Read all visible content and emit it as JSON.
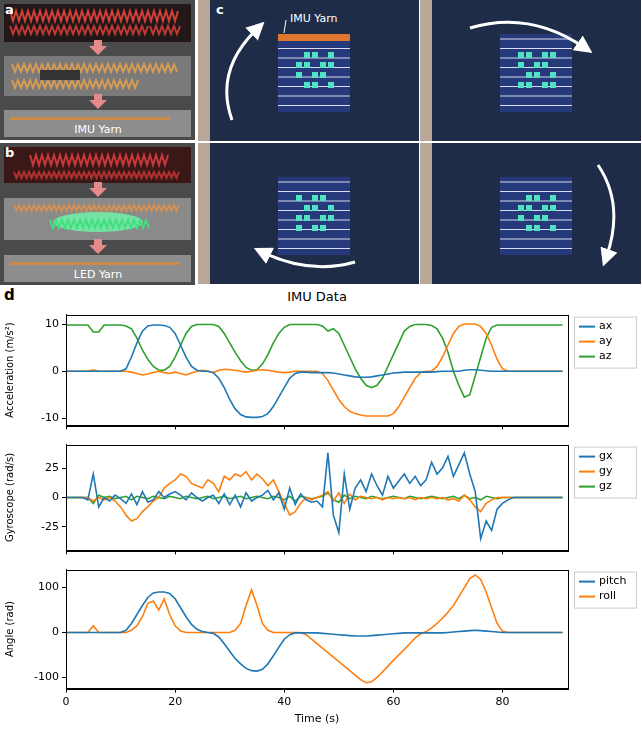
{
  "panels": [
    {
      "label": "a",
      "text": "IMU Yarn"
    },
    {
      "label": "b",
      "text": "LED Yarn"
    },
    {
      "label": "c",
      "text": "IMU Yarn"
    },
    {
      "label": "d"
    }
  ],
  "chart_data": [
    {
      "type": "line",
      "title": "IMU Data",
      "y_label": "Acceleration (m/s²)",
      "x": [
        0,
        1,
        2,
        3,
        4,
        5,
        6,
        7,
        8,
        9,
        10,
        11,
        12,
        13,
        14,
        15,
        16,
        17,
        18,
        19,
        20,
        21,
        22,
        23,
        24,
        25,
        26,
        27,
        28,
        29,
        30,
        31,
        32,
        33,
        34,
        35,
        36,
        37,
        38,
        39,
        40,
        41,
        42,
        43,
        44,
        45,
        46,
        47,
        48,
        49,
        50,
        51,
        52,
        53,
        54,
        55,
        56,
        57,
        58,
        59,
        60,
        61,
        62,
        63,
        64,
        65,
        66,
        67,
        68,
        69,
        70,
        71,
        72,
        73,
        74,
        75,
        76,
        77,
        78,
        79,
        80,
        81,
        82,
        83,
        84,
        85,
        86,
        87,
        88,
        89,
        90,
        91
      ],
      "xlim": [
        0,
        92
      ],
      "xticks": [
        0,
        20,
        40,
        60,
        80
      ],
      "ylim": [
        -11.5,
        12
      ],
      "yticks": [
        -10,
        0,
        10
      ],
      "grid": false,
      "legend": "right",
      "tick_labels": "y",
      "series": [
        {
          "name": "ax",
          "color": "#1f77b4",
          "values": [
            0,
            0,
            0,
            0,
            0,
            0,
            0,
            0,
            0,
            0,
            0,
            0.5,
            3,
            6,
            8.5,
            9.6,
            9.8,
            9.8,
            9.7,
            9.3,
            8,
            5.5,
            3,
            1,
            0.2,
            0,
            0,
            -0.3,
            -1.5,
            -3.5,
            -6,
            -8,
            -9.2,
            -9.7,
            -9.8,
            -9.8,
            -9.6,
            -9,
            -7.5,
            -5.5,
            -3.5,
            -1.5,
            -0.5,
            -0.2,
            -0.2,
            -0.3,
            -0.3,
            -0.3,
            -0.3,
            -0.4,
            -0.6,
            -0.8,
            -1,
            -1.2,
            -1.3,
            -1.3,
            -1.2,
            -1,
            -0.8,
            -0.6,
            -0.4,
            -0.3,
            -0.2,
            -0.2,
            -0.2,
            -0.2,
            -0.2,
            -0.2,
            -0.1,
            0,
            0,
            0,
            0,
            0.2,
            0.3,
            0.3,
            0.2,
            0.1,
            0,
            0,
            0,
            0,
            0,
            0,
            0,
            0,
            0,
            0,
            0,
            0,
            0,
            0
          ]
        },
        {
          "name": "ay",
          "color": "#ff7f0e",
          "values": [
            0,
            0,
            0,
            0,
            0,
            0.3,
            0,
            0,
            0,
            0,
            0,
            0,
            -0.2,
            -0.5,
            -0.8,
            -0.6,
            -0.3,
            0,
            -0.3,
            -0.5,
            -0.2,
            -0.5,
            -0.8,
            -0.4,
            0,
            0.2,
            0,
            -0.3,
            0.2,
            0.4,
            0.3,
            0.2,
            0,
            -0.2,
            0,
            0.2,
            0.3,
            0.2,
            0,
            -0.2,
            -0.3,
            -0.2,
            0,
            0,
            0,
            0,
            0,
            -0.5,
            -2,
            -4,
            -6,
            -7.5,
            -8.5,
            -9,
            -9.3,
            -9.5,
            -9.5,
            -9.5,
            -9.5,
            -9.5,
            -9,
            -7.5,
            -5.5,
            -3.5,
            -1.5,
            -0.3,
            0,
            0,
            1,
            3,
            5.5,
            8,
            9.5,
            10,
            10,
            10,
            9.5,
            8,
            5.5,
            2.5,
            0.5,
            0,
            0,
            0,
            0,
            0,
            0,
            0,
            0,
            0,
            0,
            0
          ]
        },
        {
          "name": "az",
          "color": "#2ca02c",
          "values": [
            9.8,
            9.8,
            9.8,
            9.8,
            9.8,
            8.3,
            8.3,
            9.8,
            9.8,
            9.8,
            9.8,
            9.6,
            9,
            7,
            4.5,
            2.5,
            1,
            0.2,
            0.2,
            1,
            3,
            5.5,
            8,
            9.5,
            9.9,
            9.9,
            9.9,
            9.9,
            9.5,
            8,
            6,
            4,
            2.2,
            0.8,
            0.2,
            0.3,
            1.5,
            3.5,
            6,
            8,
            9.3,
            9.9,
            9.9,
            9.9,
            9.9,
            9.9,
            9.9,
            9.6,
            8.5,
            9,
            8,
            5.5,
            3,
            0.5,
            -1.5,
            -3,
            -3.5,
            -3,
            -1.5,
            1,
            3.5,
            6,
            8.5,
            9.5,
            9.9,
            9.9,
            9.9,
            9.7,
            9,
            7,
            4,
            0,
            -3,
            -5.5,
            -5,
            -1,
            3,
            7,
            9.3,
            9.8,
            9.8,
            9.8,
            9.8,
            9.8,
            9.8,
            9.8,
            9.8,
            9.8,
            9.8,
            9.8,
            9.8,
            9.8
          ]
        }
      ]
    },
    {
      "type": "line",
      "y_label": "Gyroscope (rad/s)",
      "x": [
        0,
        1,
        2,
        3,
        4,
        5,
        6,
        7,
        8,
        9,
        10,
        11,
        12,
        13,
        14,
        15,
        16,
        17,
        18,
        19,
        20,
        21,
        22,
        23,
        24,
        25,
        26,
        27,
        28,
        29,
        30,
        31,
        32,
        33,
        34,
        35,
        36,
        37,
        38,
        39,
        40,
        41,
        42,
        43,
        44,
        45,
        46,
        47,
        48,
        49,
        50,
        51,
        52,
        53,
        54,
        55,
        56,
        57,
        58,
        59,
        60,
        61,
        62,
        63,
        64,
        65,
        66,
        67,
        68,
        69,
        70,
        71,
        72,
        73,
        74,
        75,
        76,
        77,
        78,
        79,
        80,
        81,
        82,
        83,
        84,
        85,
        86,
        87,
        88,
        89,
        90,
        91
      ],
      "xlim": [
        0,
        92
      ],
      "xticks": [
        0,
        20,
        40,
        60,
        80
      ],
      "ylim": [
        -45,
        45
      ],
      "yticks": [
        -25,
        0,
        25
      ],
      "grid": false,
      "legend": "right",
      "tick_labels": "y",
      "series": [
        {
          "name": "gx",
          "color": "#1f77b4",
          "values": [
            0,
            0,
            0,
            0,
            -2,
            20,
            -8,
            0,
            -3,
            2,
            -1,
            -5,
            3,
            -6,
            5,
            -4,
            -2,
            5,
            0,
            3,
            5,
            2,
            -2,
            4,
            0,
            -3,
            0,
            2,
            -5,
            3,
            -6,
            2,
            -8,
            4,
            -3,
            0,
            2,
            6,
            -2,
            4,
            -10,
            8,
            -6,
            3,
            -2,
            -4,
            -3,
            -8,
            38,
            -15,
            -30,
            20,
            -10,
            8,
            15,
            5,
            20,
            10,
            2,
            18,
            8,
            14,
            20,
            12,
            18,
            10,
            15,
            30,
            20,
            25,
            35,
            18,
            28,
            38,
            20,
            5,
            -35,
            -20,
            -28,
            -10,
            -5,
            -2,
            0,
            0,
            0,
            0,
            0,
            0,
            0,
            0,
            0,
            0
          ]
        },
        {
          "name": "gy",
          "color": "#ff7f0e",
          "values": [
            0,
            0,
            0,
            0,
            0,
            -3,
            0,
            -2,
            0,
            -3,
            -8,
            -15,
            -20,
            -18,
            -12,
            -8,
            -3,
            0,
            8,
            12,
            15,
            20,
            18,
            12,
            10,
            8,
            15,
            12,
            5,
            18,
            15,
            20,
            18,
            22,
            15,
            20,
            16,
            10,
            15,
            5,
            -5,
            -15,
            -12,
            -5,
            0,
            -2,
            0,
            2,
            5,
            -3,
            4,
            -5,
            3,
            -2,
            1,
            0,
            -1,
            0,
            -2,
            0,
            -1,
            0,
            -1,
            0,
            -2,
            0,
            -1,
            0,
            -1,
            0,
            -2,
            -1,
            -3,
            2,
            -2,
            -8,
            -12,
            -5,
            -2,
            0,
            0,
            0,
            0,
            0,
            0,
            0,
            0,
            0,
            0,
            0,
            0,
            0
          ]
        },
        {
          "name": "gz",
          "color": "#2ca02c",
          "values": [
            0,
            0,
            0,
            0,
            0,
            -5,
            2,
            0,
            1,
            -1,
            0,
            1,
            -2,
            1,
            0,
            -1,
            1,
            0,
            -1,
            1,
            0,
            -1,
            1,
            0,
            -1,
            0,
            1,
            -1,
            0,
            1,
            -1,
            0,
            1,
            -1,
            0,
            1,
            0,
            -1,
            1,
            0,
            -2,
            1,
            -3,
            1,
            0,
            -1,
            0,
            1,
            4,
            -2,
            -4,
            2,
            -1,
            1,
            0,
            -1,
            1,
            0,
            -1,
            0,
            1,
            0,
            -1,
            1,
            0,
            -1,
            0,
            1,
            0,
            -1,
            0,
            1,
            -1,
            2,
            -1,
            0,
            -2,
            1,
            0,
            -1,
            0,
            0,
            0,
            0,
            0,
            0,
            0,
            0,
            0,
            0,
            0,
            0
          ]
        }
      ]
    },
    {
      "type": "line",
      "x_label": "Time (s)",
      "y_label": "Angle (rad)",
      "x": [
        0,
        1,
        2,
        3,
        4,
        5,
        6,
        7,
        8,
        9,
        10,
        11,
        12,
        13,
        14,
        15,
        16,
        17,
        18,
        19,
        20,
        21,
        22,
        23,
        24,
        25,
        26,
        27,
        28,
        29,
        30,
        31,
        32,
        33,
        34,
        35,
        36,
        37,
        38,
        39,
        40,
        41,
        42,
        43,
        44,
        45,
        46,
        47,
        48,
        49,
        50,
        51,
        52,
        53,
        54,
        55,
        56,
        57,
        58,
        59,
        60,
        61,
        62,
        63,
        64,
        65,
        66,
        67,
        68,
        69,
        70,
        71,
        72,
        73,
        74,
        75,
        76,
        77,
        78,
        79,
        80,
        81,
        82,
        83,
        84,
        85,
        86,
        87,
        88,
        89,
        90,
        91
      ],
      "xlim": [
        0,
        92
      ],
      "xticks": [
        0,
        20,
        40,
        60,
        80
      ],
      "ylim": [
        -125,
        140
      ],
      "yticks": [
        -100,
        0,
        100
      ],
      "grid": false,
      "legend": "right",
      "series": [
        {
          "name": "pitch",
          "color": "#1f77b4",
          "values": [
            0,
            0,
            0,
            0,
            0,
            0,
            0,
            0,
            0,
            0,
            0,
            5,
            20,
            40,
            60,
            78,
            88,
            90,
            90,
            87,
            75,
            55,
            35,
            18,
            7,
            2,
            0,
            -2,
            -10,
            -25,
            -42,
            -58,
            -70,
            -80,
            -85,
            -86,
            -82,
            -70,
            -52,
            -33,
            -15,
            -5,
            -1,
            -1,
            -1,
            -1,
            -1,
            -2,
            -3,
            -4,
            -5,
            -6,
            -7,
            -8,
            -8,
            -8,
            -7,
            -6,
            -5,
            -4,
            -3,
            -2,
            -1,
            -1,
            -1,
            -1,
            -1,
            -1,
            -1,
            -1,
            0,
            1,
            2,
            3,
            4,
            5,
            4,
            3,
            2,
            1,
            0,
            0,
            0,
            0,
            0,
            0,
            0,
            0,
            0,
            0,
            0,
            0
          ]
        },
        {
          "name": "roll",
          "color": "#ff7f0e",
          "values": [
            0,
            0,
            0,
            0,
            0,
            15,
            0,
            0,
            0,
            0,
            0,
            0,
            5,
            15,
            35,
            65,
            70,
            50,
            75,
            40,
            15,
            3,
            0,
            0,
            0,
            0,
            0,
            0,
            0,
            0,
            0,
            5,
            20,
            60,
            95,
            60,
            20,
            5,
            0,
            0,
            0,
            0,
            0,
            0,
            -5,
            -15,
            -25,
            -35,
            -45,
            -55,
            -65,
            -75,
            -85,
            -95,
            -105,
            -112,
            -110,
            -100,
            -88,
            -75,
            -62,
            -50,
            -38,
            -25,
            -12,
            -3,
            2,
            10,
            20,
            32,
            45,
            60,
            80,
            100,
            120,
            128,
            118,
            90,
            55,
            20,
            3,
            0,
            0,
            0,
            0,
            0,
            0,
            0,
            0,
            0,
            0,
            0
          ]
        }
      ]
    }
  ]
}
